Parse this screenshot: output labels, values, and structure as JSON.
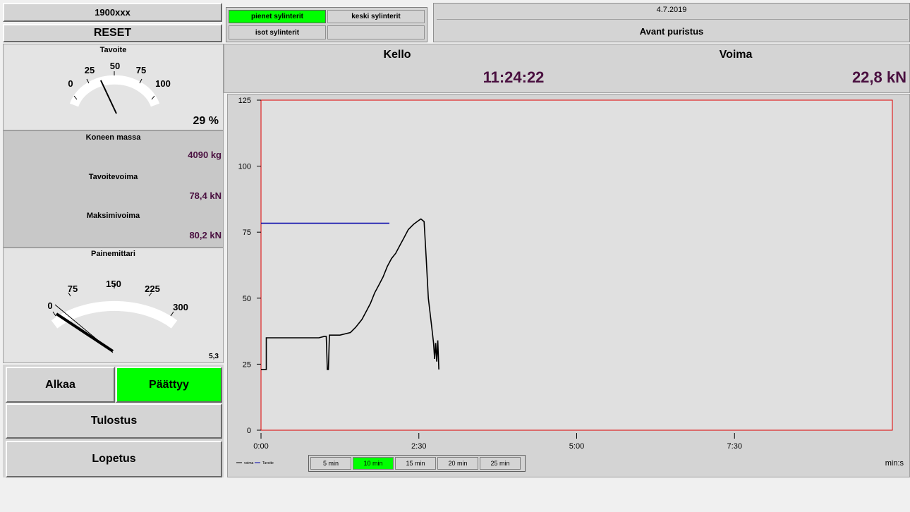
{
  "header": {
    "id_field": "1900xxx",
    "reset_label": "RESET",
    "cylinder_tabs": [
      "pienet sylinterit",
      "keski sylinterit",
      "isot sylinterit",
      ""
    ],
    "date": "4.7.2019",
    "status": "Avant puristus"
  },
  "target_gauge": {
    "title": "Tavoite",
    "ticks": [
      "0",
      "25",
      "50",
      "75",
      "100"
    ],
    "value_text": "29 %",
    "value_pct": 29
  },
  "info": {
    "mass_label": "Koneen massa",
    "mass_value": "4090 kg",
    "target_force_label": "Tavoitevoima",
    "target_force_value": "78,4 kN",
    "max_force_label": "Maksimivoima",
    "max_force_value": "80,2 kN"
  },
  "pressure_gauge": {
    "title": "Painemittari",
    "ticks": [
      "0",
      "75",
      "150",
      "225",
      "300"
    ],
    "value_text": "5,3",
    "value": 5.3
  },
  "buttons": {
    "start": "Alkaa",
    "end": "Päättyy",
    "print": "Tulostus",
    "quit": "Lopetus"
  },
  "readout": {
    "clock_label": "Kello",
    "clock_value": "11:24:22",
    "force_label": "Voima",
    "force_value": "22,8 kN"
  },
  "chart_data": {
    "type": "line",
    "x_unit": "min:s",
    "x_ticks": [
      "0:00",
      "2:30",
      "5:00",
      "7:30"
    ],
    "y_ticks": [
      "0",
      "25",
      "50",
      "75",
      "100",
      "125"
    ],
    "xlim": [
      0,
      600
    ],
    "ylim": [
      0,
      125
    ],
    "series": [
      {
        "name": "voima",
        "color": "#000000",
        "points": [
          [
            0,
            23
          ],
          [
            5,
            23
          ],
          [
            5,
            35
          ],
          [
            12,
            35
          ],
          [
            20,
            35
          ],
          [
            30,
            35
          ],
          [
            45,
            35
          ],
          [
            55,
            35
          ],
          [
            60,
            35.5
          ],
          [
            62,
            35.5
          ],
          [
            63,
            23
          ],
          [
            64,
            23
          ],
          [
            65,
            36
          ],
          [
            75,
            36
          ],
          [
            85,
            37
          ],
          [
            90,
            39
          ],
          [
            96,
            42
          ],
          [
            100,
            45
          ],
          [
            104,
            48
          ],
          [
            108,
            52
          ],
          [
            112,
            55
          ],
          [
            116,
            58
          ],
          [
            120,
            62
          ],
          [
            124,
            65
          ],
          [
            128,
            67
          ],
          [
            132,
            70
          ],
          [
            136,
            73
          ],
          [
            140,
            76
          ],
          [
            145,
            78
          ],
          [
            150,
            79.5
          ],
          [
            152,
            80
          ],
          [
            155,
            79
          ],
          [
            157,
            65
          ],
          [
            159,
            50
          ],
          [
            162,
            40
          ],
          [
            164,
            33
          ],
          [
            165,
            27
          ],
          [
            166,
            33
          ],
          [
            167,
            26
          ],
          [
            168,
            34
          ],
          [
            169,
            23
          ]
        ]
      },
      {
        "name": "Tavoite",
        "color": "#0000aa",
        "points": [
          [
            0,
            78.4
          ],
          [
            122,
            78.4
          ]
        ]
      }
    ]
  },
  "time_range": {
    "options": [
      "5 min",
      "10 min",
      "15 min",
      "20 min",
      "25 min"
    ],
    "selected": "10 min"
  }
}
